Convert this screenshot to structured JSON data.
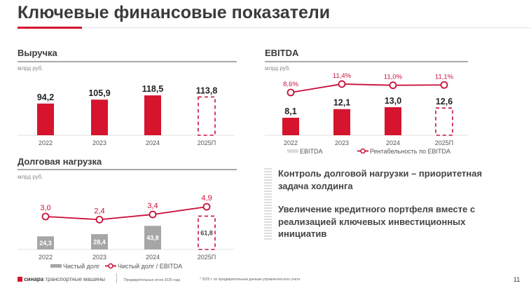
{
  "page_title": "Ключевые финансовые показатели",
  "page_number": "11",
  "colors": {
    "accent": "#d7142e",
    "gray_bar": "#a6a6a6",
    "line": "#c8103a"
  },
  "messages": [
    "Контроль долговой нагрузки – приоритетная задача холдинга",
    "Увеличение кредитного портфеля вместе с реализацией ключевых инвестиционных инициатив"
  ],
  "footer": {
    "logo_brand": "синара",
    "logo_text": "транспортные машины",
    "note1": "Предварительные итоги 2025 года",
    "note2": "* 2025 г. по предварительным данным управленческого учета"
  },
  "chart_data": [
    {
      "type": "bar",
      "title": "Выручка",
      "unit": "млрд руб.",
      "categories": [
        "2022",
        "2023",
        "2024",
        "2025П"
      ],
      "values": [
        94.2,
        105.9,
        118.5,
        113.8
      ],
      "value_labels": [
        "94,2",
        "105,9",
        "118,5",
        "113,8"
      ],
      "forecast": [
        false,
        false,
        false,
        true
      ],
      "bar_color": "#d7142e"
    },
    {
      "type": "bar+line",
      "title": "EBITDA",
      "unit": "млрд руб.",
      "categories": [
        "2022",
        "2023",
        "2024",
        "2025П"
      ],
      "series": [
        {
          "name": "EBITDA",
          "values": [
            8.1,
            12.1,
            13.0,
            12.6
          ],
          "labels": [
            "8,1",
            "12,1",
            "13,0",
            "12,6"
          ],
          "color": "#d7142e"
        },
        {
          "name": "Рентабельность по EBITDA",
          "values": [
            8.6,
            11.4,
            11.0,
            11.1
          ],
          "labels": [
            "8,6%",
            "11,4%",
            "11,0%",
            "11,1%"
          ],
          "color": "#c8103a"
        }
      ],
      "forecast": [
        false,
        false,
        false,
        true
      ],
      "legend": "bottom"
    },
    {
      "type": "bar+line",
      "title": "Долговая нагрузка",
      "unit": "млрд руб.",
      "categories": [
        "2022",
        "2023",
        "2024",
        "2025П"
      ],
      "series": [
        {
          "name": "Чистый долг",
          "values": [
            24.3,
            28.4,
            43.8,
            61.8
          ],
          "labels": [
            "24,3",
            "28,4",
            "43,8",
            "61,8"
          ],
          "color": "#a6a6a6"
        },
        {
          "name": "Чистый долг / EBITDA",
          "values": [
            3.0,
            2.4,
            3.4,
            4.9
          ],
          "labels": [
            "3,0",
            "2,4",
            "3,4",
            "4,9"
          ],
          "color": "#c8103a"
        }
      ],
      "forecast": [
        false,
        false,
        false,
        true
      ],
      "legend": "bottom"
    }
  ]
}
